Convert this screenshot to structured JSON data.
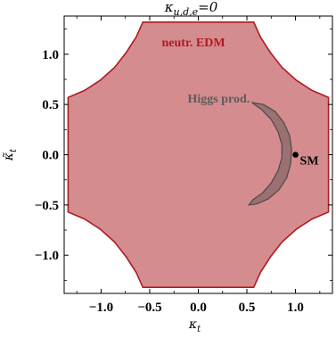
{
  "chart_data": {
    "type": "area",
    "title": {
      "base": "κ",
      "subscript": "u,d,e",
      "suffix": "=0"
    },
    "xlabel": {
      "base": "κ",
      "subscript": "t"
    },
    "ylabel": {
      "base": "κ̃",
      "subscript": "t"
    },
    "xlim": [
      -1.38,
      1.38
    ],
    "ylim": [
      -1.38,
      1.38
    ],
    "xticks": [
      -1.0,
      -0.5,
      0.0,
      0.5,
      1.0
    ],
    "yticks": [
      -1.0,
      -0.5,
      0.0,
      0.5,
      1.0
    ],
    "xtick_labels": [
      "−1.0",
      "−0.5",
      "0.0",
      "0.5",
      "1.0"
    ],
    "ytick_labels": [
      "−1.0",
      "−0.5",
      "0.0",
      "0.5",
      "1.0"
    ],
    "grid": false,
    "regions": [
      {
        "label": "neutr. EDM",
        "color": "#d48c8f",
        "edge": "#b01b22",
        "polygon": [
          [
            -0.57,
            1.32
          ],
          [
            0.57,
            1.32
          ],
          [
            0.64,
            1.17
          ],
          [
            0.74,
            1.02
          ],
          [
            0.86,
            0.87
          ],
          [
            1.01,
            0.74
          ],
          [
            1.17,
            0.64
          ],
          [
            1.34,
            0.57
          ],
          [
            1.34,
            -0.57
          ],
          [
            1.17,
            -0.64
          ],
          [
            1.01,
            -0.74
          ],
          [
            0.86,
            -0.87
          ],
          [
            0.74,
            -1.02
          ],
          [
            0.64,
            -1.17
          ],
          [
            0.57,
            -1.32
          ],
          [
            -0.57,
            -1.32
          ],
          [
            -0.64,
            -1.17
          ],
          [
            -0.74,
            -1.02
          ],
          [
            -0.86,
            -0.87
          ],
          [
            -1.01,
            -0.74
          ],
          [
            -1.17,
            -0.64
          ],
          [
            -1.34,
            -0.57
          ],
          [
            -1.34,
            0.57
          ],
          [
            -1.17,
            0.64
          ],
          [
            -1.01,
            0.74
          ],
          [
            -0.86,
            0.87
          ],
          [
            -0.74,
            1.02
          ],
          [
            -0.64,
            1.17
          ]
        ]
      },
      {
        "label": "Higgs prod.",
        "color": "#9a7070",
        "edge": "#4a4a4a",
        "polygon": [
          [
            0.55,
            0.52
          ],
          [
            0.67,
            0.5
          ],
          [
            0.79,
            0.43
          ],
          [
            0.88,
            0.32
          ],
          [
            0.94,
            0.19
          ],
          [
            0.96,
            0.05
          ],
          [
            0.95,
            -0.09
          ],
          [
            0.91,
            -0.23
          ],
          [
            0.83,
            -0.35
          ],
          [
            0.72,
            -0.44
          ],
          [
            0.6,
            -0.49
          ],
          [
            0.52,
            -0.5
          ],
          [
            0.56,
            -0.45
          ],
          [
            0.66,
            -0.38
          ],
          [
            0.75,
            -0.28
          ],
          [
            0.82,
            -0.16
          ],
          [
            0.86,
            -0.03
          ],
          [
            0.86,
            0.1
          ],
          [
            0.82,
            0.23
          ],
          [
            0.75,
            0.35
          ],
          [
            0.65,
            0.45
          ],
          [
            0.55,
            0.52
          ]
        ]
      }
    ],
    "points": [
      {
        "label": "SM",
        "x": 1.0,
        "y": 0.0
      }
    ]
  }
}
